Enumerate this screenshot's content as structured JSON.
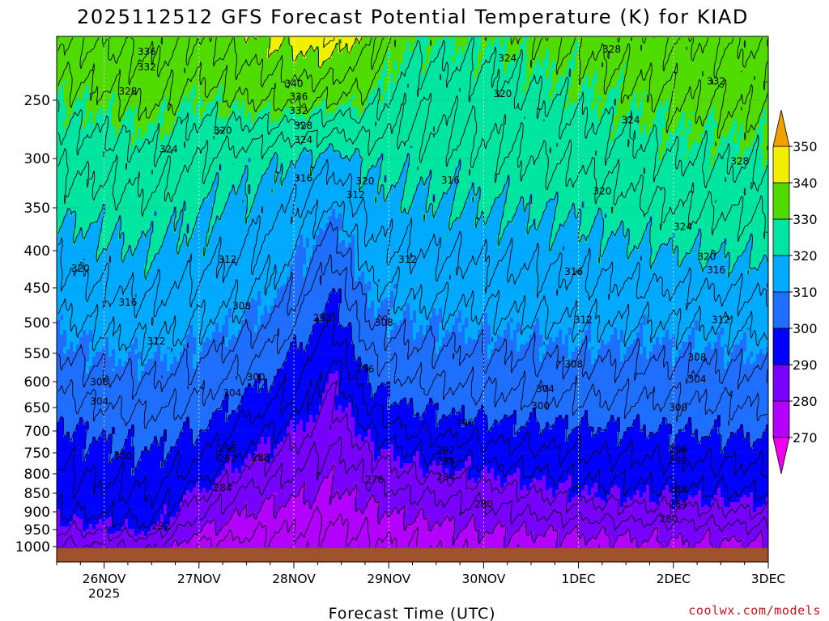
{
  "chart_data": {
    "type": "heatmap",
    "title": "2025112512 GFS Forecast Potential Temperature (K) for KIAD",
    "xlabel": "Forecast Time (UTC)",
    "ylabel": "",
    "x_ticks": [
      {
        "label": "26NOV",
        "sublabel": "2025",
        "day": 1
      },
      {
        "label": "27NOV",
        "sublabel": "",
        "day": 2
      },
      {
        "label": "28NOV",
        "sublabel": "",
        "day": 3
      },
      {
        "label": "29NOV",
        "sublabel": "",
        "day": 4
      },
      {
        "label": "30NOV",
        "sublabel": "",
        "day": 5
      },
      {
        "label": "1DEC",
        "sublabel": "",
        "day": 6
      },
      {
        "label": "2DEC",
        "sublabel": "",
        "day": 7
      },
      {
        "label": "3DEC",
        "sublabel": "",
        "day": 8
      }
    ],
    "xlim_days": [
      0.5,
      8.0
    ],
    "y_ticks": [
      250,
      300,
      350,
      400,
      450,
      500,
      550,
      600,
      650,
      700,
      750,
      800,
      850,
      900,
      950,
      1000
    ],
    "ylim_hpa": [
      1000,
      200
    ],
    "grid": true,
    "colorbar": {
      "levels": [
        270,
        280,
        290,
        300,
        310,
        320,
        330,
        340,
        350
      ],
      "colors": [
        "#f000f0",
        "#b400ff",
        "#7800ff",
        "#0000ff",
        "#1e6eff",
        "#00aaff",
        "#00e6a0",
        "#50dc00",
        "#f0f000",
        "#f0a000"
      ],
      "extend": "both"
    },
    "contour_interval_k": 4,
    "profiles": {
      "pressure_hpa": [
        1000,
        950,
        900,
        850,
        800,
        750,
        700,
        650,
        600,
        550,
        500,
        450,
        400,
        350,
        300,
        250,
        200
      ],
      "series": [
        {
          "day": 0.5,
          "theta_k": [
            283,
            288,
            292,
            294,
            295,
            297,
            299,
            302,
            305,
            308,
            311,
            314,
            317,
            321,
            325,
            330,
            336
          ]
        },
        {
          "day": 1.0,
          "theta_k": [
            284,
            289,
            293,
            295,
            297,
            299,
            301,
            304,
            307,
            310,
            313,
            316,
            319,
            322,
            326,
            331,
            337
          ]
        },
        {
          "day": 1.5,
          "theta_k": [
            285,
            291,
            294,
            296,
            298,
            300,
            302,
            305,
            308,
            311,
            314,
            317,
            320,
            323,
            327,
            333,
            338
          ]
        },
        {
          "day": 2.0,
          "theta_k": [
            275,
            280,
            285,
            289,
            294,
            297,
            300,
            303,
            306,
            309,
            312,
            315,
            318,
            320,
            324,
            330,
            336
          ]
        },
        {
          "day": 2.5,
          "theta_k": [
            274,
            277,
            280,
            283,
            287,
            291,
            294,
            298,
            302,
            306,
            310,
            313,
            316,
            319,
            322,
            332,
            339
          ]
        },
        {
          "day": 3.0,
          "theta_k": [
            274,
            276,
            278,
            281,
            284,
            287,
            290,
            294,
            297,
            300,
            305,
            309,
            312,
            316,
            320,
            333,
            342
          ]
        },
        {
          "day": 3.4,
          "theta_k": [
            274,
            275,
            277,
            279,
            281,
            283,
            285,
            287,
            289,
            292,
            296,
            300,
            305,
            311,
            318,
            332,
            344
          ]
        },
        {
          "day": 3.8,
          "theta_k": [
            275,
            277,
            279,
            282,
            285,
            288,
            292,
            296,
            300,
            304,
            308,
            311,
            315,
            318,
            321,
            330,
            338
          ]
        },
        {
          "day": 4.2,
          "theta_k": [
            276,
            278,
            281,
            284,
            288,
            292,
            296,
            300,
            304,
            307,
            310,
            313,
            316,
            319,
            322,
            325,
            330
          ]
        },
        {
          "day": 5.0,
          "theta_k": [
            278,
            280,
            283,
            286,
            290,
            294,
            298,
            302,
            305,
            308,
            311,
            314,
            317,
            320,
            323,
            326,
            330
          ]
        },
        {
          "day": 6.0,
          "theta_k": [
            278,
            281,
            286,
            290,
            293,
            296,
            299,
            303,
            306,
            309,
            312,
            315,
            318,
            321,
            325,
            329,
            333
          ]
        },
        {
          "day": 7.0,
          "theta_k": [
            279,
            282,
            287,
            291,
            294,
            297,
            300,
            303,
            306,
            309,
            312,
            316,
            320,
            324,
            328,
            332,
            336
          ]
        },
        {
          "day": 8.0,
          "theta_k": [
            279,
            283,
            288,
            292,
            295,
            298,
            301,
            304,
            307,
            310,
            313,
            317,
            321,
            325,
            329,
            333,
            337
          ]
        }
      ]
    },
    "contour_labels": [
      {
        "text": "336",
        "day": 1.45,
        "p": 212
      },
      {
        "text": "332",
        "day": 1.45,
        "p": 224
      },
      {
        "text": "328",
        "day": 1.25,
        "p": 243
      },
      {
        "text": "340",
        "day": 3.0,
        "p": 237
      },
      {
        "text": "336",
        "day": 3.05,
        "p": 247
      },
      {
        "text": "332",
        "day": 3.05,
        "p": 259
      },
      {
        "text": "328",
        "day": 3.1,
        "p": 272
      },
      {
        "text": "324",
        "day": 3.1,
        "p": 284
      },
      {
        "text": "320",
        "day": 2.25,
        "p": 276
      },
      {
        "text": "324",
        "day": 1.68,
        "p": 292
      },
      {
        "text": "316",
        "day": 3.1,
        "p": 320
      },
      {
        "text": "320",
        "day": 3.75,
        "p": 323
      },
      {
        "text": "312",
        "day": 3.65,
        "p": 337
      },
      {
        "text": "316",
        "day": 4.65,
        "p": 322
      },
      {
        "text": "324",
        "day": 5.25,
        "p": 217
      },
      {
        "text": "320",
        "day": 5.2,
        "p": 245
      },
      {
        "text": "328",
        "day": 6.35,
        "p": 210
      },
      {
        "text": "324",
        "day": 6.55,
        "p": 267
      },
      {
        "text": "332",
        "day": 7.45,
        "p": 235
      },
      {
        "text": "328",
        "day": 7.7,
        "p": 303
      },
      {
        "text": "320",
        "day": 6.25,
        "p": 333
      },
      {
        "text": "324",
        "day": 7.1,
        "p": 372
      },
      {
        "text": "320",
        "day": 7.35,
        "p": 408
      },
      {
        "text": "316",
        "day": 7.45,
        "p": 426
      },
      {
        "text": "320",
        "day": 0.75,
        "p": 424
      },
      {
        "text": "312",
        "day": 2.3,
        "p": 412
      },
      {
        "text": "316",
        "day": 1.25,
        "p": 471
      },
      {
        "text": "308",
        "day": 2.45,
        "p": 476
      },
      {
        "text": "312",
        "day": 4.2,
        "p": 412
      },
      {
        "text": "316",
        "day": 5.95,
        "p": 428
      },
      {
        "text": "312",
        "day": 1.55,
        "p": 530
      },
      {
        "text": "292",
        "day": 3.3,
        "p": 493
      },
      {
        "text": "308",
        "day": 3.95,
        "p": 500
      },
      {
        "text": "312",
        "day": 6.05,
        "p": 496
      },
      {
        "text": "312",
        "day": 7.5,
        "p": 496
      },
      {
        "text": "308",
        "day": 0.95,
        "p": 601
      },
      {
        "text": "300",
        "day": 2.6,
        "p": 592
      },
      {
        "text": "296",
        "day": 3.75,
        "p": 578
      },
      {
        "text": "308",
        "day": 5.95,
        "p": 569
      },
      {
        "text": "308",
        "day": 7.25,
        "p": 557
      },
      {
        "text": "304",
        "day": 0.95,
        "p": 638
      },
      {
        "text": "304",
        "day": 2.35,
        "p": 622
      },
      {
        "text": "304",
        "day": 5.65,
        "p": 614
      },
      {
        "text": "304",
        "day": 7.25,
        "p": 596
      },
      {
        "text": "300",
        "day": 5.6,
        "p": 647
      },
      {
        "text": "300",
        "day": 7.05,
        "p": 650
      },
      {
        "text": "296",
        "day": 4.8,
        "p": 683
      },
      {
        "text": "300",
        "day": 1.2,
        "p": 758
      },
      {
        "text": "296",
        "day": 2.3,
        "p": 741
      },
      {
        "text": "292",
        "day": 2.3,
        "p": 764
      },
      {
        "text": "288",
        "day": 2.65,
        "p": 762
      },
      {
        "text": "292",
        "day": 4.6,
        "p": 744
      },
      {
        "text": "288",
        "day": 4.6,
        "p": 770
      },
      {
        "text": "284",
        "day": 4.6,
        "p": 808
      },
      {
        "text": "296",
        "day": 7.05,
        "p": 743
      },
      {
        "text": "292",
        "day": 7.05,
        "p": 769
      },
      {
        "text": "276",
        "day": 3.85,
        "p": 816
      },
      {
        "text": "284",
        "day": 2.25,
        "p": 836
      },
      {
        "text": "280",
        "day": 5.0,
        "p": 879
      },
      {
        "text": "288",
        "day": 7.05,
        "p": 840
      },
      {
        "text": "284",
        "day": 7.05,
        "p": 879
      },
      {
        "text": "280",
        "day": 6.95,
        "p": 920
      },
      {
        "text": "292",
        "day": 1.6,
        "p": 940
      }
    ]
  },
  "credit": "coolwx.com/models"
}
